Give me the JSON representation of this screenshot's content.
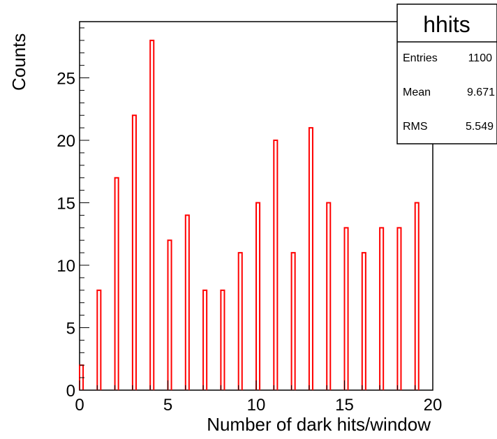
{
  "chart_data": {
    "type": "bar",
    "title": "",
    "xlabel": "Number of dark hits/window",
    "ylabel": "Counts",
    "xlim": [
      0,
      20
    ],
    "ylim": [
      0,
      29.5
    ],
    "x_ticks": [
      "0",
      "5",
      "10",
      "15",
      "20"
    ],
    "y_ticks": [
      "0",
      "5",
      "10",
      "15",
      "20",
      "25"
    ],
    "bin_width": 0.2,
    "bins": [
      {
        "x": 0,
        "y": 2
      },
      {
        "x": 1,
        "y": 8
      },
      {
        "x": 2,
        "y": 17
      },
      {
        "x": 3,
        "y": 22
      },
      {
        "x": 4,
        "y": 28
      },
      {
        "x": 5,
        "y": 12
      },
      {
        "x": 6,
        "y": 14
      },
      {
        "x": 7,
        "y": 8
      },
      {
        "x": 8,
        "y": 8
      },
      {
        "x": 9,
        "y": 11
      },
      {
        "x": 10,
        "y": 15
      },
      {
        "x": 11,
        "y": 20
      },
      {
        "x": 12,
        "y": 11
      },
      {
        "x": 13,
        "y": 21
      },
      {
        "x": 14,
        "y": 15
      },
      {
        "x": 15,
        "y": 13
      },
      {
        "x": 16,
        "y": 11
      },
      {
        "x": 17,
        "y": 13
      },
      {
        "x": 18,
        "y": 13
      },
      {
        "x": 19,
        "y": 15
      }
    ],
    "line_color": "#ff0000",
    "grid": false,
    "stats_box": {
      "title": "hhits",
      "rows": [
        {
          "label": "Entries",
          "value": "1100"
        },
        {
          "label": "Mean",
          "value": "9.671"
        },
        {
          "label": "RMS",
          "value": "5.549"
        }
      ]
    }
  }
}
